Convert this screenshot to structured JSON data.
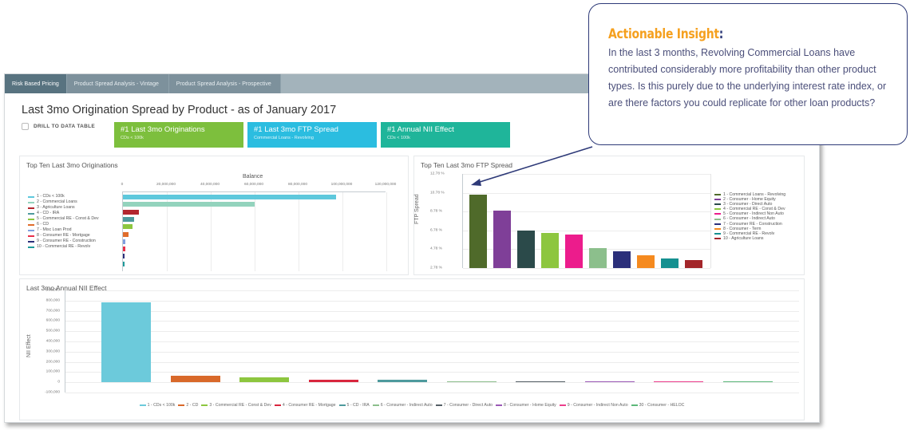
{
  "tabs": [
    {
      "label": "Risk Based Pricing",
      "active": true
    },
    {
      "label": "Product Spread Analysis - Vintage",
      "active": false
    },
    {
      "label": "Product Spread Analysis - Prospective",
      "active": false
    }
  ],
  "page_title": "Last 3mo Origination Spread by Product - as of January 2017",
  "drill_label": "DRILL TO DATA TABLE",
  "kpis": [
    {
      "title": "#1 Last 3mo Originations",
      "sub": "CDs < 100k",
      "color": "#7dbf3d"
    },
    {
      "title": "#1 Last 3mo FTP Spread",
      "sub": "Commercial Loans - Revolving",
      "color": "#2bbde0"
    },
    {
      "title": "#1 Annual NII Effect",
      "sub": "CDs < 100k",
      "color": "#1fb59a"
    }
  ],
  "callout": {
    "title": "Actionable Insight",
    "colon": ":",
    "body": "In the last 3 months, Revolving Commercial Loans have contributed considerably more profitability than other product types. Is this purely due to the underlying interest rate index, or are there factors you could replicate for other loan products?"
  },
  "chart_data": [
    {
      "type": "bar",
      "orientation": "horizontal",
      "title": "Top Ten Last 3mo Originations",
      "xlabel": "Balance",
      "ylabel": "",
      "xlim": [
        0,
        120000000
      ],
      "ticks": [
        "0",
        "20,000,000",
        "40,000,000",
        "60,000,000",
        "80,000,000",
        "100,000,000",
        "120,000,000"
      ],
      "legend_position": "left",
      "categories": [
        "1 - CDs < 100k",
        "2 - Commercial Loans",
        "3 - Agriculture Loans",
        "4 - CD - IRA",
        "5 - Commercial RE - Const & Dev",
        "6 - CD",
        "7 - Misc Loan Prod",
        "8 - Consumer RE - Mortgage",
        "9 - Consumer RE - Construction",
        "10 - Commercial RE - Revolv"
      ],
      "values": [
        97000000,
        60000000,
        7200000,
        5200000,
        4200000,
        2600000,
        1100000,
        1000000,
        900000,
        900000
      ],
      "colors": [
        "#5ec8dc",
        "#93d3bd",
        "#b3262e",
        "#4e9a9d",
        "#8dc63f",
        "#e06d2c",
        "#7f9fe0",
        "#e8304a",
        "#2b2f7a",
        "#1e9a9a"
      ]
    },
    {
      "type": "bar",
      "title": "Top Ten Last 3mo FTP Spread",
      "xlabel": "",
      "ylabel": "FTP Spread",
      "ylim": [
        2.78,
        12.78
      ],
      "ticks": [
        "12.78 %",
        "10.78 %",
        "8.78 %",
        "6.78 %",
        "4.78 %",
        "2.78 %"
      ],
      "legend_position": "right",
      "categories": [
        "1 - Commercial Loans - Revolving",
        "2 - Consumer - Home Equity",
        "3 - Consumer - Direct Auto",
        "4 - Commercial RE - Const & Dev",
        "5 - Consumer - Indirect Non Auto",
        "6 - Consumer - Indirect Auto",
        "7 - Consumer RE - Construction",
        "8 - Consumer - Term",
        "9 - Commercial RE - Revolv",
        "10 - Agriculture Loans"
      ],
      "values": [
        10.6,
        8.9,
        6.8,
        6.5,
        6.3,
        4.9,
        4.6,
        4.1,
        3.8,
        3.6
      ],
      "colors": [
        "#4f6a2a",
        "#7f3f98",
        "#2b4a4a",
        "#8dc63f",
        "#ec1c8c",
        "#8cbf8c",
        "#2b2f7a",
        "#f58a1f",
        "#159090",
        "#a3262a"
      ]
    },
    {
      "type": "bar",
      "title": "Last 3mo Annual NII Effect",
      "xlabel": "",
      "ylabel": "NII Effect",
      "ylim": [
        -100000,
        900000
      ],
      "ticks": [
        "900,000",
        "800,000",
        "700,000",
        "600,000",
        "500,000",
        "400,000",
        "300,000",
        "200,000",
        "100,000",
        "0",
        "-100,000"
      ],
      "legend_position": "bottom",
      "categories": [
        "1 - CDs < 100k",
        "2 - CD",
        "3 - Commercial RE - Const & Dev",
        "4 - Consumer RE - Mortgage",
        "5 - CD - IRA",
        "6 - Consumer - Indirect Auto",
        "7 - Consumer - Direct Auto",
        "8 - Consumer - Home Equity",
        "9 - Consumer - Indirect Non Auto",
        "30 - Consumer - HELOC"
      ],
      "values": [
        780000,
        65000,
        45000,
        25000,
        22000,
        3000,
        3000,
        3000,
        3000,
        3000
      ],
      "colors": [
        "#6ccadb",
        "#d9692a",
        "#8dc63f",
        "#d9263e",
        "#4e9a9d",
        "#8cbf8c",
        "#555f66",
        "#9b59b6",
        "#ec3f8c",
        "#5cb87a"
      ]
    }
  ]
}
